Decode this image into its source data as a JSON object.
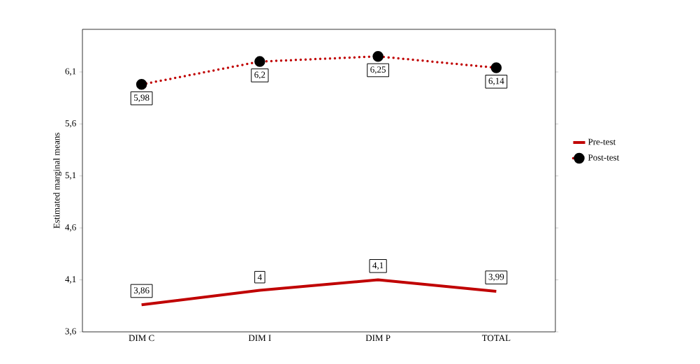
{
  "chart_data": {
    "type": "line",
    "ylabel": "Estimated marginal means",
    "categories": [
      "DIM C",
      "DIM I",
      "DIM P",
      "TOTAL"
    ],
    "series": [
      {
        "name": "Pre-test",
        "color": "#c00000",
        "values": [
          3.86,
          4,
          4.1,
          3.99
        ],
        "value_labels": [
          "3,86",
          "4",
          "4,1",
          "3,99"
        ],
        "line_style": "solid",
        "marker": "none"
      },
      {
        "name": "Post-test",
        "color": "#c00000",
        "values": [
          5.98,
          6.2,
          6.25,
          6.14
        ],
        "value_labels": [
          "5,98",
          "6,2",
          "6,25",
          "6,14"
        ],
        "line_style": "dotted",
        "marker": "circle"
      }
    ],
    "ylim": [
      3.6,
      6.51
    ],
    "yticks": [
      {
        "value": 3.6,
        "label": "3,6"
      },
      {
        "value": 4.1,
        "label": "4,1"
      },
      {
        "value": 4.6,
        "label": "4,6"
      },
      {
        "value": 5.1,
        "label": "5,1"
      },
      {
        "value": 5.6,
        "label": "5,6"
      },
      {
        "value": 6.1,
        "label": "6,1"
      }
    ],
    "grid": false,
    "legend": "right"
  }
}
